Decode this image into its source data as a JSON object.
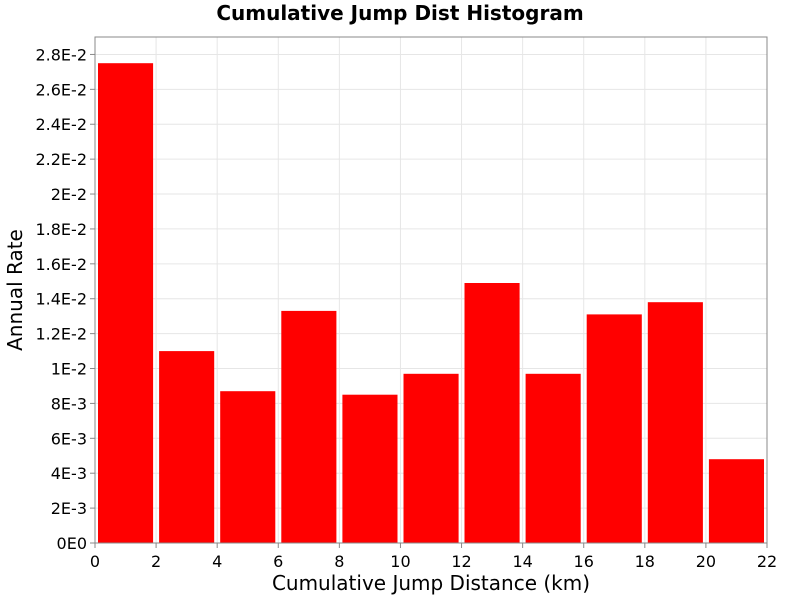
{
  "chart_data": {
    "type": "bar",
    "title": "Cumulative Jump Dist Histogram",
    "xlabel": "Cumulative Jump Distance (km)",
    "ylabel": "Annual Rate",
    "xlim": [
      0,
      22
    ],
    "ylim": [
      0,
      0.029
    ],
    "x_ticks": [
      {
        "value": 0,
        "label": "0"
      },
      {
        "value": 2,
        "label": "2"
      },
      {
        "value": 4,
        "label": "4"
      },
      {
        "value": 6,
        "label": "6"
      },
      {
        "value": 8,
        "label": "8"
      },
      {
        "value": 10,
        "label": "10"
      },
      {
        "value": 12,
        "label": "12"
      },
      {
        "value": 14,
        "label": "14"
      },
      {
        "value": 16,
        "label": "16"
      },
      {
        "value": 18,
        "label": "18"
      },
      {
        "value": 20,
        "label": "20"
      },
      {
        "value": 22,
        "label": "22"
      }
    ],
    "y_ticks": [
      {
        "value": 0,
        "label": "0E0"
      },
      {
        "value": 0.002,
        "label": "2E-3"
      },
      {
        "value": 0.004,
        "label": "4E-3"
      },
      {
        "value": 0.006,
        "label": "6E-3"
      },
      {
        "value": 0.008,
        "label": "8E-3"
      },
      {
        "value": 0.01,
        "label": "1E-2"
      },
      {
        "value": 0.012,
        "label": "1.2E-2"
      },
      {
        "value": 0.014,
        "label": "1.4E-2"
      },
      {
        "value": 0.016,
        "label": "1.6E-2"
      },
      {
        "value": 0.018,
        "label": "1.8E-2"
      },
      {
        "value": 0.02,
        "label": "2E-2"
      },
      {
        "value": 0.022,
        "label": "2.2E-2"
      },
      {
        "value": 0.024,
        "label": "2.4E-2"
      },
      {
        "value": 0.026,
        "label": "2.6E-2"
      },
      {
        "value": 0.028,
        "label": "2.8E-2"
      }
    ],
    "bins": [
      {
        "x_start": 0,
        "x_end": 2,
        "value": 0.0275
      },
      {
        "x_start": 2,
        "x_end": 4,
        "value": 0.011
      },
      {
        "x_start": 4,
        "x_end": 6,
        "value": 0.0087
      },
      {
        "x_start": 6,
        "x_end": 8,
        "value": 0.0133
      },
      {
        "x_start": 8,
        "x_end": 10,
        "value": 0.0085
      },
      {
        "x_start": 10,
        "x_end": 12,
        "value": 0.0097
      },
      {
        "x_start": 12,
        "x_end": 14,
        "value": 0.0149
      },
      {
        "x_start": 14,
        "x_end": 16,
        "value": 0.0097
      },
      {
        "x_start": 16,
        "x_end": 18,
        "value": 0.0131
      },
      {
        "x_start": 18,
        "x_end": 20,
        "value": 0.0138
      },
      {
        "x_start": 20,
        "x_end": 22,
        "value": 0.0048
      }
    ],
    "grid": true,
    "colors": {
      "bar": "#ff0000",
      "grid": "#e6e6e6",
      "frame": "#888888"
    }
  }
}
